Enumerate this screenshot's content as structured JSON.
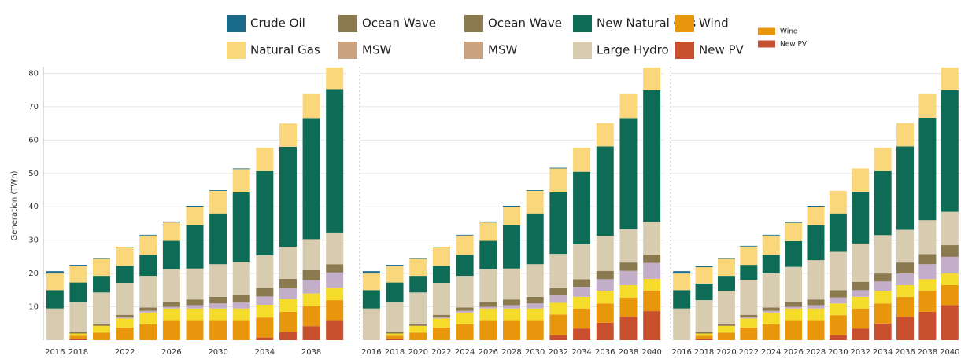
{
  "legend": [
    {
      "name": "Crude Oil",
      "color": "#1a6a8a"
    },
    {
      "name": "Natural Gas",
      "color": "#f9d77a"
    },
    {
      "name": "Ocean Wave",
      "color": "#8b7a50"
    },
    {
      "name": "MSW",
      "color": "#c9a27e"
    },
    {
      "name": "Ocean Wave",
      "color": "#8b7a50"
    },
    {
      "name": "MSW",
      "color": "#c9a27e"
    },
    {
      "name": "New Natural Gas",
      "color": "#0e6b55"
    },
    {
      "name": "Large Hydro",
      "color": "#d8ccb0"
    },
    {
      "name": "Wind",
      "color": "#e8960c"
    },
    {
      "name": "New PV",
      "color": "#c8502e"
    },
    {
      "name": "Wind",
      "color": "#e8960c"
    },
    {
      "name": "New PV",
      "color": "#c8502e"
    }
  ],
  "chart_data": [
    {
      "type": "bar",
      "stacked": true,
      "y_label": "Generation (TWh)",
      "grid": true,
      "categories": [
        "2016",
        "2018",
        null,
        "2022",
        null,
        "2026",
        null,
        "2030",
        null,
        "2034",
        null,
        "2038",
        null
      ],
      "ylim": [
        0,
        82
      ],
      "yticks": [
        10,
        20,
        30,
        40,
        50,
        60,
        70,
        80
      ],
      "series": [
        {
          "color": "#c8502e",
          "values": [
            0,
            0.3,
            0,
            0,
            0,
            0,
            0,
            0,
            0,
            0.8,
            2.5,
            4.2,
            6
          ]
        },
        {
          "color": "#e8960c",
          "values": [
            0,
            1,
            2.3,
            3.8,
            4.8,
            6,
            6,
            6,
            6,
            6,
            6,
            6,
            6
          ]
        },
        {
          "color": "#f5dc2a",
          "values": [
            0,
            0.7,
            2,
            2.7,
            3.5,
            3.5,
            3.5,
            3.5,
            3.5,
            3.8,
            3.8,
            3.8,
            3.8
          ]
        },
        {
          "color": "#c2aec8",
          "values": [
            0,
            0,
            0,
            0.3,
            0.5,
            0.5,
            1,
            1.5,
            1.8,
            2.5,
            3.3,
            4,
            4.5
          ]
        },
        {
          "color": "#8b7a50",
          "values": [
            0,
            0.5,
            0.5,
            0.8,
            1,
            1.5,
            1.7,
            2,
            2.2,
            2.6,
            2.8,
            3,
            2.5
          ]
        },
        {
          "color": "#d8ccb0",
          "values": [
            9.5,
            9,
            9.5,
            9.6,
            9.5,
            9.8,
            9.3,
            9.8,
            10,
            9.8,
            9.6,
            9.3,
            9.5
          ]
        },
        {
          "color": "#0e6b55",
          "values": [
            5.5,
            5.8,
            5,
            5.1,
            6.3,
            8.5,
            13,
            15.2,
            20.8,
            25.2,
            30,
            36.3,
            43
          ]
        },
        {
          "color": "#f9d77a",
          "values": [
            5,
            4.9,
            5.1,
            5.5,
            5.8,
            5.5,
            5.5,
            6.8,
            7,
            7,
            7,
            7.2,
            6.5
          ]
        },
        {
          "color": "#1a6a8a",
          "values": [
            0.7,
            0.4,
            0.3,
            0.2,
            0.2,
            0.3,
            0.3,
            0.2,
            0.2,
            0,
            0,
            0,
            0
          ]
        }
      ]
    },
    {
      "type": "bar",
      "stacked": true,
      "grid": true,
      "categories": [
        "2016",
        "2018",
        "2020",
        "2022",
        "2024",
        "2026",
        "2028",
        "2030",
        "2032",
        "2034",
        "2036",
        "2038",
        "2040"
      ],
      "ylim": [
        0,
        82
      ],
      "series": [
        {
          "color": "#c8502e",
          "values": [
            0,
            0.3,
            0,
            0,
            0,
            0,
            0,
            0,
            1.5,
            3.5,
            5.2,
            7,
            8.7
          ]
        },
        {
          "color": "#e8960c",
          "values": [
            0,
            1,
            2.3,
            3.8,
            4.8,
            6,
            6,
            6,
            6.2,
            6,
            5.8,
            5.8,
            6.2
          ]
        },
        {
          "color": "#f5dc2a",
          "values": [
            0,
            0.7,
            2,
            2.7,
            3.5,
            3.5,
            3.5,
            3.5,
            3.5,
            3.5,
            3.8,
            3.7,
            3.5
          ]
        },
        {
          "color": "#c2aec8",
          "values": [
            0,
            0,
            0,
            0.3,
            0.5,
            0.5,
            1,
            1.5,
            2.2,
            3,
            3.5,
            4.3,
            4.8
          ]
        },
        {
          "color": "#8b7a50",
          "values": [
            0,
            0.5,
            0.5,
            0.8,
            1,
            1.5,
            1.7,
            2,
            2.2,
            2.3,
            2.5,
            2.5,
            2.5
          ]
        },
        {
          "color": "#d8ccb0",
          "values": [
            9.5,
            9,
            9.5,
            9.6,
            9.5,
            9.8,
            9.3,
            9.8,
            10.3,
            10.5,
            10.5,
            10,
            9.8
          ]
        },
        {
          "color": "#0e6b55",
          "values": [
            5.5,
            5.8,
            5,
            5.1,
            6.3,
            8.5,
            13,
            15.2,
            18.4,
            21.7,
            26.8,
            33.3,
            39.5
          ]
        },
        {
          "color": "#f9d77a",
          "values": [
            5,
            4.9,
            5.1,
            5.5,
            5.8,
            5.5,
            5.5,
            6.8,
            7.2,
            7.2,
            7,
            7.2,
            6.8
          ]
        },
        {
          "color": "#1a6a8a",
          "values": [
            0.7,
            0.4,
            0.3,
            0.2,
            0.2,
            0.3,
            0.3,
            0.2,
            0.2,
            0,
            0,
            0,
            0
          ]
        }
      ]
    },
    {
      "type": "bar",
      "stacked": true,
      "grid": true,
      "categories": [
        "2016",
        "2018",
        "2020",
        "2022",
        "2024",
        "2026",
        "2028",
        "2030",
        "2032",
        "2034",
        "2036",
        "2038",
        "2040"
      ],
      "ylim": [
        0,
        82
      ],
      "series": [
        {
          "color": "#c8502e",
          "values": [
            0,
            0.3,
            0,
            0,
            0,
            0,
            0,
            1.5,
            3.5,
            5,
            7,
            8.5,
            10.5
          ]
        },
        {
          "color": "#e8960c",
          "values": [
            0,
            1,
            2.3,
            3.8,
            4.8,
            6,
            6,
            6,
            6,
            6,
            6,
            6.3,
            6
          ]
        },
        {
          "color": "#f5dc2a",
          "values": [
            0,
            0.7,
            2,
            2.7,
            3.5,
            3.5,
            3.5,
            3.5,
            3.5,
            3.8,
            3.5,
            3.5,
            3.5
          ]
        },
        {
          "color": "#c2aec8",
          "values": [
            0,
            0,
            0,
            0.3,
            0.5,
            0.5,
            1,
            1.8,
            2,
            2.8,
            3.5,
            4.5,
            5
          ]
        },
        {
          "color": "#8b7a50",
          "values": [
            0,
            0.5,
            0.5,
            0.8,
            1,
            1.5,
            1.7,
            2.2,
            2.5,
            2.4,
            3.3,
            3,
            3.5
          ]
        },
        {
          "color": "#d8ccb0",
          "values": [
            9.5,
            9.5,
            10,
            10.5,
            10.3,
            10.5,
            11.8,
            11.5,
            11.5,
            11.5,
            9.8,
            10.2,
            10
          ]
        },
        {
          "color": "#0e6b55",
          "values": [
            5.5,
            5,
            4.5,
            4.5,
            5.5,
            7.7,
            10.5,
            11.5,
            15.5,
            19.2,
            25,
            30.7,
            36.5
          ]
        },
        {
          "color": "#f9d77a",
          "values": [
            5,
            4.9,
            5.1,
            5.5,
            5.8,
            5.5,
            5.5,
            6.8,
            7,
            7,
            7,
            7.1,
            6.8
          ]
        },
        {
          "color": "#1a6a8a",
          "values": [
            0.7,
            0.4,
            0.3,
            0.2,
            0.2,
            0.3,
            0.3,
            0,
            0,
            0,
            0,
            0,
            0
          ]
        }
      ]
    }
  ]
}
